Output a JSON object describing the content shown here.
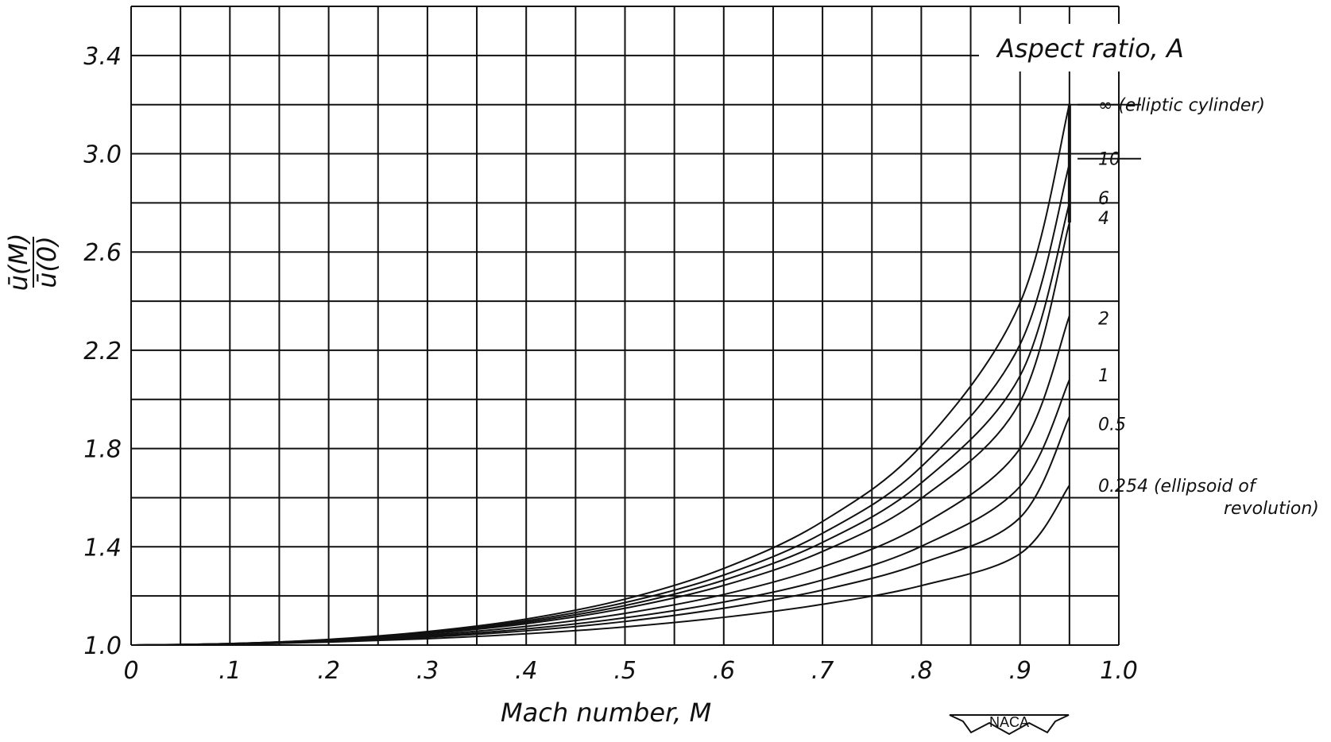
{
  "chart_data": {
    "type": "line",
    "title": "",
    "xlabel": "Mach number, M",
    "ylabel_numerator": "ū(M)",
    "ylabel_denominator": "ū(0)",
    "xlim": [
      0,
      1.0
    ],
    "ylim": [
      1.0,
      3.6
    ],
    "grid": true,
    "x_ticks": [
      0,
      0.1,
      0.2,
      0.3,
      0.4,
      0.5,
      0.6,
      0.7,
      0.8,
      0.9,
      1.0
    ],
    "x_tick_labels": [
      "0",
      ".1",
      ".2",
      ".3",
      ".4",
      ".5",
      ".6",
      ".7",
      ".8",
      ".9",
      "1.0"
    ],
    "y_ticks": [
      1.0,
      1.4,
      1.8,
      2.2,
      2.6,
      3.0,
      3.4
    ],
    "y_tick_labels": [
      "1.0",
      "1.4",
      "1.8",
      "2.2",
      "2.6",
      "3.0",
      "3.4"
    ],
    "legend_title": "Aspect ratio, A",
    "legend_placement": "right",
    "x": [
      0,
      0.1,
      0.2,
      0.3,
      0.4,
      0.5,
      0.6,
      0.7,
      0.8,
      0.9,
      0.95
    ],
    "series": [
      {
        "name": "∞ (elliptic cylinder)",
        "values": [
          1.0,
          1.006,
          1.023,
          1.055,
          1.106,
          1.187,
          1.312,
          1.503,
          1.812,
          2.393,
          3.203
        ]
      },
      {
        "name": "10",
        "values": [
          1.0,
          1.006,
          1.022,
          1.052,
          1.099,
          1.173,
          1.285,
          1.455,
          1.726,
          2.224,
          2.96
        ]
      },
      {
        "name": "6",
        "values": [
          1.0,
          1.006,
          1.021,
          1.049,
          1.093,
          1.161,
          1.264,
          1.418,
          1.66,
          2.096,
          2.8
        ]
      },
      {
        "name": "4",
        "values": [
          1.0,
          1.005,
          1.02,
          1.046,
          1.087,
          1.15,
          1.243,
          1.381,
          1.597,
          1.99,
          2.72
        ]
      },
      {
        "name": "2",
        "values": [
          1.0,
          1.005,
          1.018,
          1.041,
          1.076,
          1.129,
          1.206,
          1.318,
          1.488,
          1.8,
          2.34
        ]
      },
      {
        "name": "1",
        "values": [
          1.0,
          1.004,
          1.016,
          1.036,
          1.066,
          1.111,
          1.175,
          1.265,
          1.402,
          1.646,
          2.08
        ]
      },
      {
        "name": "0.5",
        "values": [
          1.0,
          1.004,
          1.014,
          1.032,
          1.058,
          1.096,
          1.15,
          1.224,
          1.333,
          1.519,
          1.93
        ]
      },
      {
        "name": "0.254 (ellipsoid of revolution)",
        "values": [
          1.0,
          1.003,
          1.012,
          1.026,
          1.046,
          1.074,
          1.113,
          1.166,
          1.242,
          1.372,
          1.65
        ]
      }
    ],
    "legend_entries": [
      {
        "text": "∞ (elliptic cylinder)",
        "y": 3.2
      },
      {
        "text": "10",
        "y": 2.98
      },
      {
        "text": "6",
        "y": 2.82
      },
      {
        "text": "4",
        "y": 2.74
      },
      {
        "text": "2",
        "y": 2.33
      },
      {
        "text": "1",
        "y": 2.1
      },
      {
        "text": "0.5",
        "y": 1.9
      },
      {
        "text": "0.254 (ellipsoid of",
        "y": 1.65
      },
      {
        "text": "revolution)",
        "y": 1.56
      }
    ],
    "logo_text": "NACA"
  }
}
